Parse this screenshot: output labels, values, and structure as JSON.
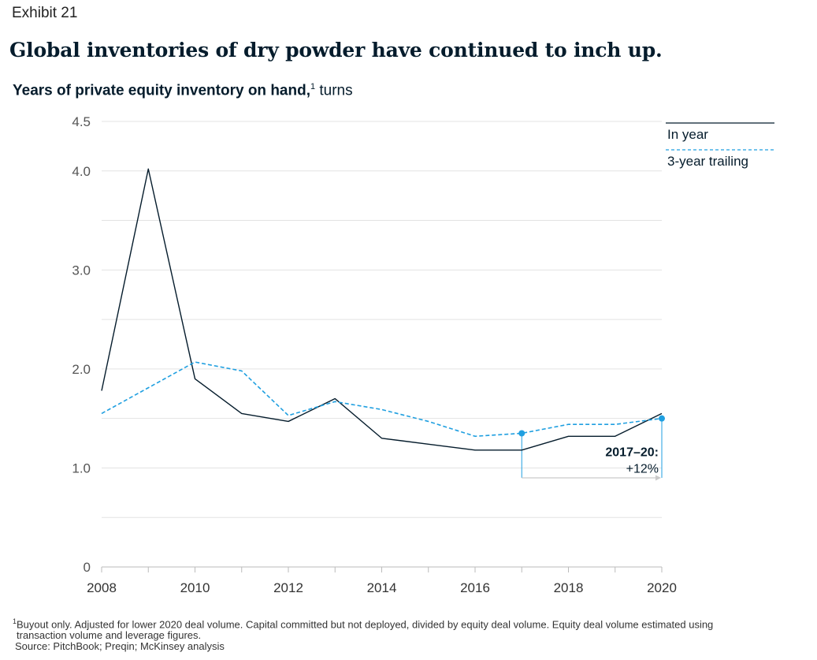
{
  "header": {
    "exhibit": "Exhibit 21",
    "title": "Global inventories of dry powder have continued to inch up.",
    "subtitle_bold": "Years of private equity inventory on hand,",
    "subtitle_sup": "1",
    "subtitle_unit": " turns"
  },
  "chart_data": {
    "type": "line",
    "x": [
      2008,
      2009,
      2010,
      2011,
      2012,
      2013,
      2014,
      2015,
      2016,
      2017,
      2018,
      2019,
      2020
    ],
    "x_tick_labels": [
      "2008",
      "2010",
      "2012",
      "2014",
      "2016",
      "2018",
      "2020"
    ],
    "y_tick_labels": [
      "0",
      "1.0",
      "2.0",
      "3.0",
      "4.0",
      "4.5"
    ],
    "ylim": [
      0,
      4.5
    ],
    "xlim": [
      2008,
      2020
    ],
    "grid": true,
    "series": [
      {
        "name": "In year",
        "style": "solid",
        "color": "#051c2c",
        "values": [
          1.78,
          4.02,
          1.9,
          1.55,
          1.47,
          1.7,
          1.3,
          1.24,
          1.18,
          1.18,
          1.32,
          1.32,
          1.55
        ]
      },
      {
        "name": "3-year trailing",
        "style": "dashed",
        "color": "#1f9fe0",
        "values": [
          1.55,
          1.81,
          2.07,
          1.98,
          1.53,
          1.67,
          1.59,
          1.47,
          1.32,
          1.35,
          1.44,
          1.44,
          1.5
        ]
      }
    ],
    "legend_placement": "top-right",
    "annotation": {
      "label": "2017–20:",
      "value": "+12%",
      "from_x": 2017,
      "to_x": 2020,
      "series": "3-year trailing"
    }
  },
  "footnote": {
    "line1": "Buyout only. Adjusted for lower 2020 deal volume. Capital committed but not deployed, divided by equity deal volume. Equity deal volume estimated using",
    "line1_sup": "1",
    "line2": "transaction volume and leverage figures.",
    "source": "Source: PitchBook; Preqin; McKinsey analysis"
  }
}
